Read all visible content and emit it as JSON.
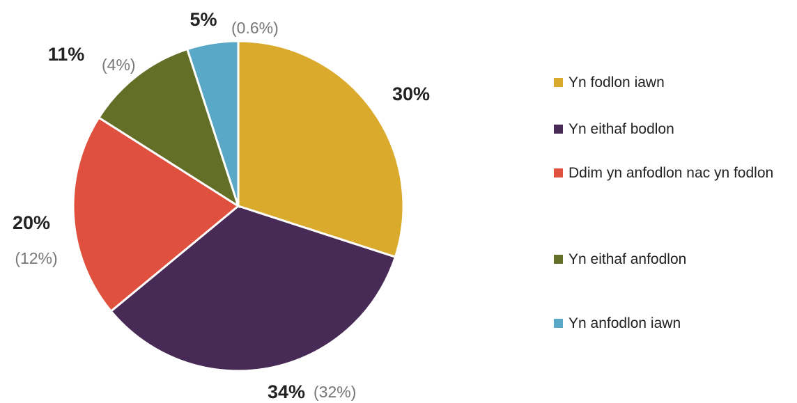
{
  "chart_data": {
    "type": "pie",
    "categories": [
      "Yn fodlon iawn",
      "Yn eithaf bodlon",
      "Ddim yn anfodlon nac yn fodlon",
      "Yn eithaf anfodlon",
      "Yn anfodlon iawn"
    ],
    "values": [
      30,
      34,
      20,
      11,
      5
    ],
    "value_labels": [
      "30%",
      "34%",
      "20%",
      "11%",
      "5%"
    ],
    "secondary_labels": [
      null,
      "(32%)",
      "(12%)",
      "(4%)",
      "(0.6%)"
    ],
    "colors": [
      "#d9aa2b",
      "#472a55",
      "#e0503e",
      "#636e27",
      "#5aa8c8"
    ],
    "legend": "right"
  }
}
